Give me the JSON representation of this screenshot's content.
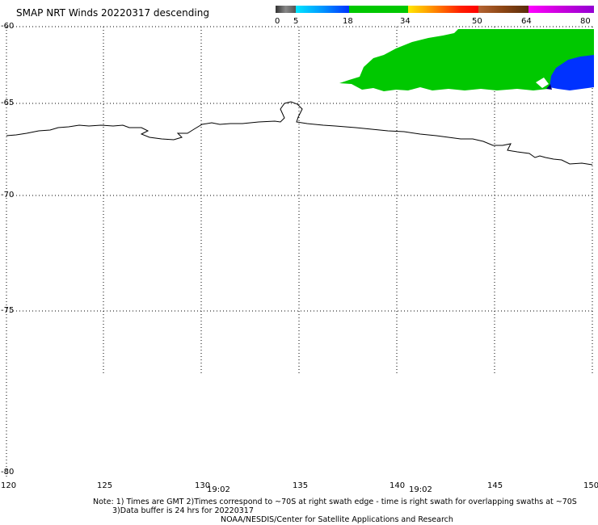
{
  "title": "SMAP NRT Winds  20220317 descending",
  "colorbar": {
    "labels": [
      "0",
      "5",
      "18",
      "34",
      "50",
      "64",
      "80"
    ],
    "colors": {
      "calm_gray": "#555555",
      "light_blue": "#00c8ff",
      "blue": "#0032ff",
      "green": "#00c800",
      "yellow": "#ffd200",
      "orange": "#ff8c00",
      "red": "#ff0000",
      "brown": "#8b4513",
      "magenta": "#ff00ff",
      "purple": "#9400d3"
    }
  },
  "axes": {
    "lon_labels": [
      "120",
      "125",
      "130",
      "135",
      "140",
      "145",
      "150"
    ],
    "lat_labels": [
      "-60",
      "-65",
      "-70",
      "-75",
      "-80"
    ]
  },
  "swath_times": [
    "19:02",
    "19:02"
  ],
  "notes": {
    "line1": "Note: 1) Times are GMT 2)Times correspond to ~70S at right swath edge - time is right swath for overlapping swaths at ~70S",
    "line2": "3)Data buffer is 24 hrs for 20220317",
    "line3": "NOAA/NESDIS/Center for Satellite Applications and Research"
  },
  "wind_colors": {
    "wind_18_34": "#00c800",
    "wind_5_18": "#0032ff"
  }
}
